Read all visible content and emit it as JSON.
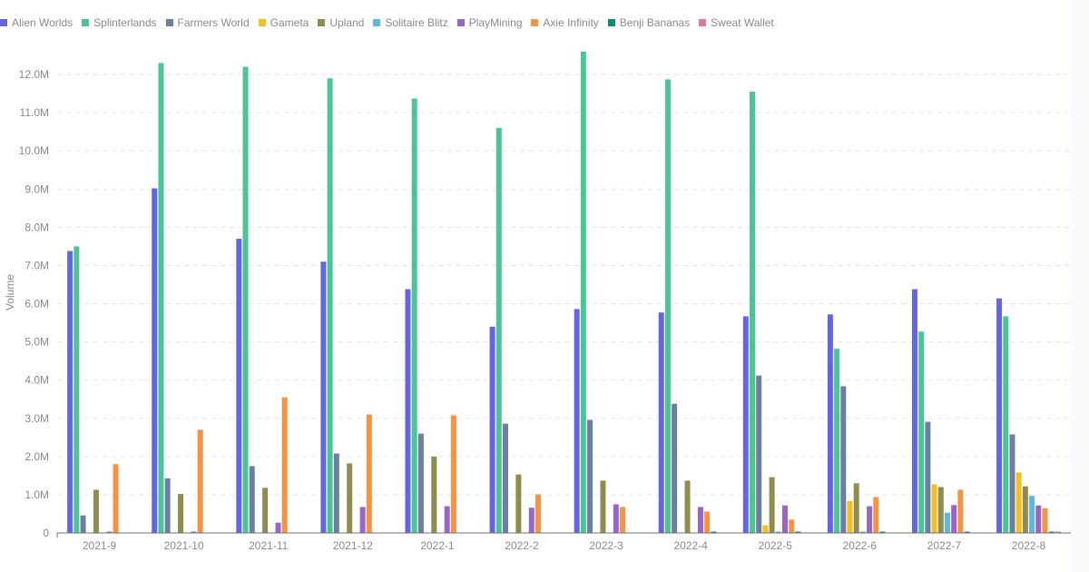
{
  "legend": [
    {
      "name": "Alien Worlds",
      "color": "#6366e0"
    },
    {
      "name": "Splinterlands",
      "color": "#4cc596"
    },
    {
      "name": "Farmers World",
      "color": "#6b7fa0"
    },
    {
      "name": "Gameta",
      "color": "#f3bf22"
    },
    {
      "name": "Upland",
      "color": "#8e8d4f"
    },
    {
      "name": "Solitaire Blitz",
      "color": "#5fb8dc"
    },
    {
      "name": "PlayMining",
      "color": "#9966c4"
    },
    {
      "name": "Axie Infinity",
      "color": "#f59344"
    },
    {
      "name": "Benji Bananas",
      "color": "#0e8a80"
    },
    {
      "name": "Sweat Wallet",
      "color": "#d57ba0"
    }
  ],
  "axis": {
    "ylabel": "Volume",
    "yticks": [
      "0",
      "1.0M",
      "2.0M",
      "3.0M",
      "4.0M",
      "5.0M",
      "6.0M",
      "7.0M",
      "8.0M",
      "9.0M",
      "10.0M",
      "11.0M",
      "12.0M"
    ]
  },
  "chart_data": {
    "type": "bar",
    "title": "",
    "xlabel": "",
    "ylabel": "Volume",
    "ylim": [
      0,
      12600000
    ],
    "grid": true,
    "legend_position": "top-left",
    "categories": [
      "2021-9",
      "2021-10",
      "2021-11",
      "2021-12",
      "2022-1",
      "2022-2",
      "2022-3",
      "2022-4",
      "2022-5",
      "2022-6",
      "2022-7",
      "2022-8"
    ],
    "series": [
      {
        "name": "Alien Worlds",
        "values": [
          7380000,
          9020000,
          7700000,
          7100000,
          6380000,
          5400000,
          5860000,
          5770000,
          5670000,
          5720000,
          6380000,
          6140000
        ]
      },
      {
        "name": "Splinterlands",
        "values": [
          7500000,
          12300000,
          12200000,
          11900000,
          11370000,
          10600000,
          12600000,
          11870000,
          11550000,
          4820000,
          5270000,
          5670000
        ]
      },
      {
        "name": "Farmers World",
        "values": [
          460000,
          1430000,
          1750000,
          2080000,
          2600000,
          2860000,
          2960000,
          3380000,
          4120000,
          3840000,
          2910000,
          2580000
        ]
      },
      {
        "name": "Gameta",
        "values": [
          0,
          0,
          0,
          0,
          0,
          0,
          0,
          0,
          200000,
          840000,
          1270000,
          1580000
        ]
      },
      {
        "name": "Upland",
        "values": [
          1130000,
          1020000,
          1180000,
          1820000,
          2000000,
          1530000,
          1370000,
          1370000,
          1460000,
          1300000,
          1200000,
          1220000
        ]
      },
      {
        "name": "Solitaire Blitz",
        "values": [
          0,
          0,
          0,
          0,
          0,
          0,
          0,
          0,
          20000,
          20000,
          530000,
          970000
        ]
      },
      {
        "name": "PlayMining",
        "values": [
          30000,
          30000,
          270000,
          680000,
          700000,
          660000,
          750000,
          680000,
          720000,
          700000,
          730000,
          720000
        ]
      },
      {
        "name": "Axie Infinity",
        "values": [
          1800000,
          2700000,
          3550000,
          3100000,
          3080000,
          1010000,
          680000,
          560000,
          350000,
          940000,
          1130000,
          650000
        ]
      },
      {
        "name": "Benji Bananas",
        "values": [
          0,
          0,
          0,
          0,
          0,
          0,
          0,
          30000,
          20000,
          20000,
          30000,
          30000
        ]
      },
      {
        "name": "Sweat Wallet",
        "values": [
          0,
          0,
          0,
          0,
          0,
          0,
          0,
          0,
          0,
          0,
          0,
          30000
        ]
      }
    ]
  }
}
